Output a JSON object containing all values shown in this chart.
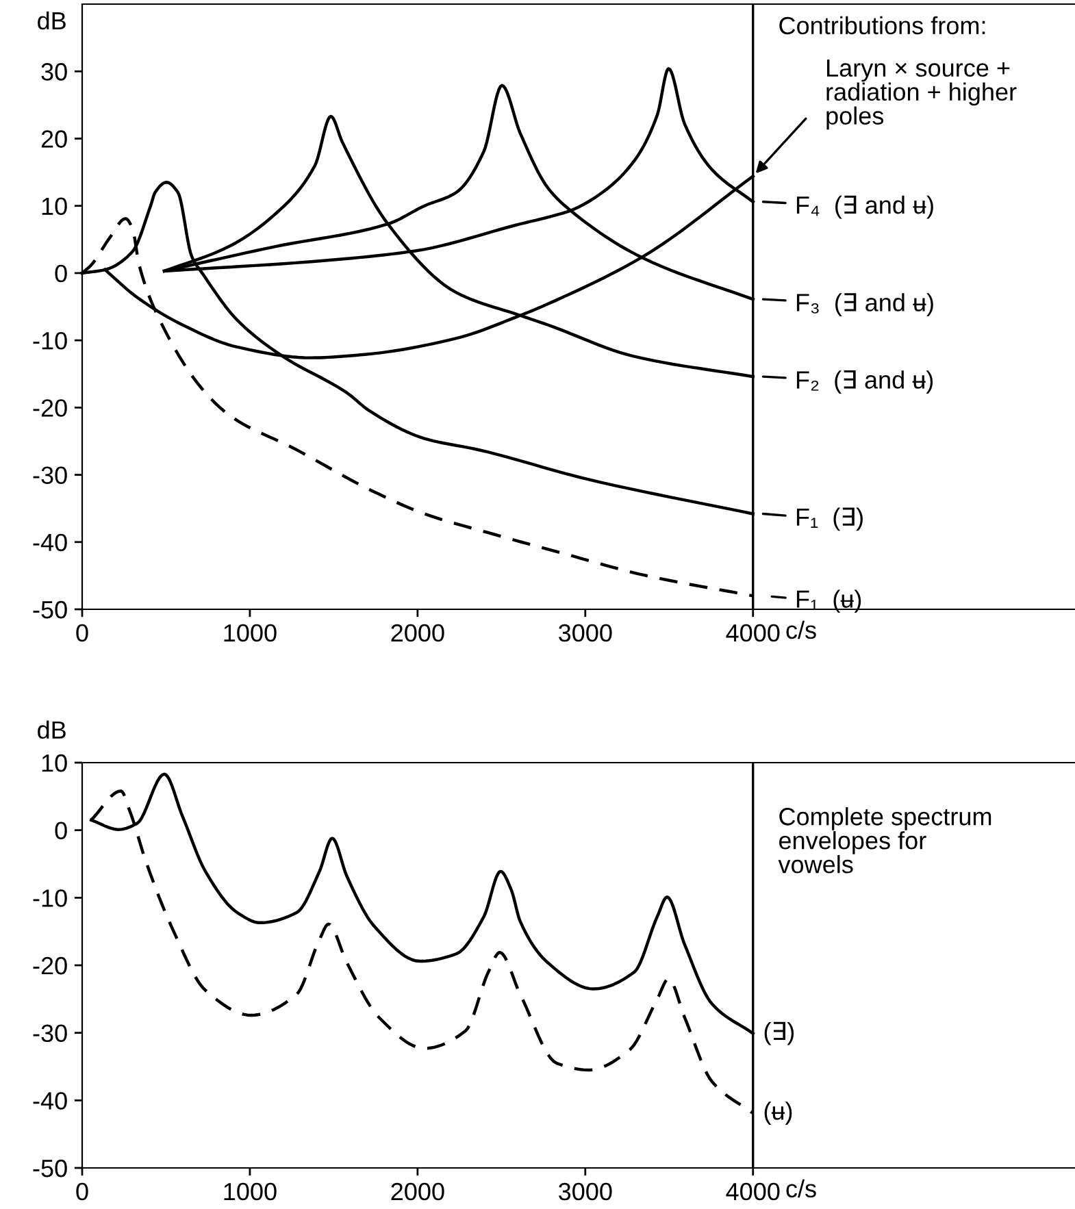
{
  "chart_data": [
    {
      "type": "line",
      "ylabel": "dB",
      "xlabel": "c/s",
      "xlim": [
        0,
        5920
      ],
      "ylim": [
        -50,
        40
      ],
      "xticks": [
        0,
        1000,
        2000,
        3000,
        4000
      ],
      "yticks": [
        -50,
        -40,
        -30,
        -20,
        -10,
        0,
        10,
        20,
        30
      ],
      "grid": false,
      "legend": "right",
      "marker": "none",
      "ref_lines": [
        {
          "axis": "x",
          "value": 4000
        }
      ],
      "annotations": [
        "Contributions from:",
        {
          "text": "Laryn × source +\nradiation + higher\npoles",
          "x": 4000,
          "y": 14.4
        }
      ],
      "series": [
        {
          "color": "#000000",
          "line_style": "solid",
          "x": [
            136,
            327,
            598,
            925,
            1361,
            1687,
            2231,
            2612,
            2776,
            3347,
            4000
          ],
          "values": [
            0.5,
            -3.6,
            -7.7,
            -11,
            -12.6,
            -12.1,
            -9.7,
            -6.3,
            -4.6,
            2.5,
            14.4
          ]
        },
        {
          "name": "F₄  (∃ and ʉ)",
          "color": "#000000",
          "line_style": "solid",
          "x": [
            490,
            1415,
            1986,
            2612,
            2776,
            2912,
            3102,
            3292,
            3429,
            3497,
            3592,
            3755,
            4000
          ],
          "values": [
            0.3,
            1.8,
            3.3,
            7.3,
            8.3,
            9.3,
            12,
            16.7,
            23.5,
            30.4,
            22.2,
            15.4,
            10.6
          ]
        },
        {
          "name": "F₃  (∃ and ʉ)",
          "color": "#000000",
          "line_style": "solid",
          "x": [
            490,
            1143,
            1823,
            2041,
            2231,
            2395,
            2503,
            2612,
            2776,
            2912,
            3347,
            4000
          ],
          "values": [
            0.3,
            3.9,
            7.3,
            10,
            12,
            18.1,
            27.9,
            20.8,
            12.7,
            9.3,
            2.2,
            -3.9
          ]
        },
        {
          "name": "F₂  (∃ and ʉ)",
          "color": "#000000",
          "line_style": "solid",
          "x": [
            490,
            871,
            1143,
            1388,
            1483,
            1551,
            1823,
            2231,
            2612,
            2776,
            3292,
            4000
          ],
          "values": [
            0.3,
            3.9,
            8.6,
            16,
            23.3,
            19.5,
            7.3,
            -2.9,
            -6.3,
            -7.7,
            -12.4,
            -15.4
          ]
        },
        {
          "name": "F₁  (∃)",
          "color": "#000000",
          "line_style": "solid",
          "x": [
            0,
            136,
            300,
            408,
            435,
            503,
            571,
            653,
            721,
            925,
            1197,
            1578,
            1714,
            2041,
            2367,
            3020,
            4000
          ],
          "values": [
            0,
            0.5,
            3.2,
            10,
            12,
            13.5,
            12,
            2.5,
            -0.2,
            -7,
            -12.4,
            -17.8,
            -20.5,
            -24.6,
            -26.3,
            -30.7,
            -35.8
          ]
        },
        {
          "name": "F₁  (ʉ)",
          "color": "#000000",
          "line_style": "dashed",
          "x": [
            0,
            54,
            163,
            259,
            300,
            340,
            463,
            735,
            898,
            1265,
            1714,
            2041,
            2449,
            2898,
            3347,
            4000
          ],
          "values": [
            0,
            1.2,
            5.2,
            8.1,
            6.6,
            1.2,
            -7,
            -17.8,
            -21.5,
            -26.1,
            -32.2,
            -35.8,
            -38.8,
            -41.9,
            -44.9,
            -48
          ]
        }
      ]
    },
    {
      "type": "line",
      "ylabel": "dB",
      "xlabel": "c/s",
      "xlim": [
        0,
        5920
      ],
      "ylim": [
        -50,
        10
      ],
      "xticks": [
        0,
        1000,
        2000,
        3000,
        4000
      ],
      "yticks": [
        -50,
        -40,
        -30,
        -20,
        -10,
        0,
        10
      ],
      "grid": false,
      "legend": "right",
      "marker": "none",
      "ref_lines": [
        {
          "axis": "x",
          "value": 4000
        }
      ],
      "annotations": [
        "Complete spectrum\nenvelopes for\nvowels"
      ],
      "series": [
        {
          "name": "(∃)",
          "color": "#000000",
          "line_style": "solid",
          "x": [
            54,
            218,
            327,
            490,
            599,
            735,
            925,
            1061,
            1279,
            1415,
            1491,
            1578,
            1741,
            2014,
            2231,
            2395,
            2495,
            2558,
            2612,
            2776,
            3048,
            3292,
            3429,
            3488,
            3592,
            3755,
            4000
          ],
          "values": [
            1.5,
            0.1,
            1,
            8.3,
            2,
            -6.1,
            -12.2,
            -13.7,
            -12.2,
            -6.1,
            -1.2,
            -6.8,
            -14.2,
            -19.4,
            -18.3,
            -12.8,
            -6.1,
            -8.8,
            -13.5,
            -19.6,
            -23.5,
            -21,
            -12.8,
            -9.9,
            -16.9,
            -25.7,
            -30.1
          ]
        },
        {
          "name": "(ʉ)",
          "color": "#000000",
          "line_style": "dashed",
          "x": [
            54,
            231,
            286,
            381,
            544,
            735,
            1007,
            1279,
            1415,
            1469,
            1578,
            1769,
            2041,
            2286,
            2422,
            2490,
            2612,
            2830,
            3020,
            3265,
            3429,
            3497,
            3592,
            3755,
            4000
          ],
          "values": [
            1.5,
            5.8,
            2.7,
            -4.7,
            -14.9,
            -23.7,
            -27.4,
            -24.3,
            -16.2,
            -13.9,
            -19.6,
            -27.7,
            -32.3,
            -29.7,
            -21,
            -18.1,
            -24.3,
            -34.5,
            -35.5,
            -32.5,
            -25,
            -22,
            -27.7,
            -37.2,
            -41.9
          ]
        }
      ]
    }
  ]
}
